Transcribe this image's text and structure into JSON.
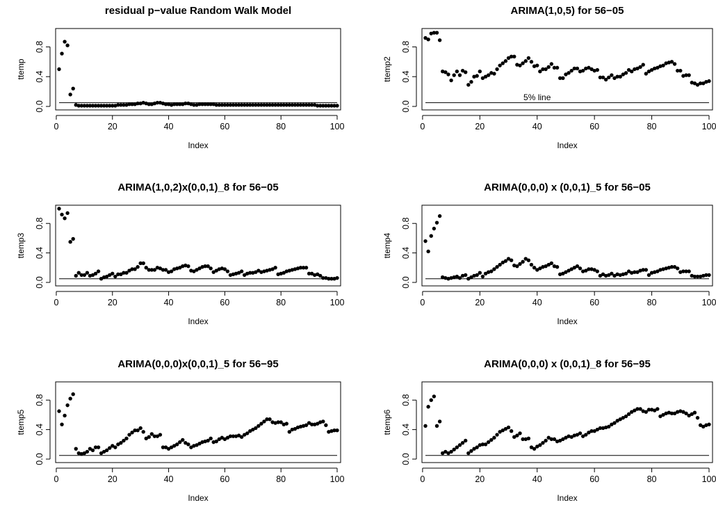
{
  "figure": {
    "title": ""
  },
  "chart_data": [
    {
      "type": "scatter",
      "title": "residual p−value Random Walk Model",
      "xlabel": "Index",
      "ylabel": "ttemp",
      "xlim": [
        1,
        100
      ],
      "ylim": [
        0,
        1
      ],
      "xticks": [
        0,
        20,
        40,
        60,
        80,
        100
      ],
      "yticks": [
        0.0,
        0.4,
        0.8
      ],
      "xtick_labels": [
        "0",
        "20",
        "40",
        "60",
        "80",
        "100"
      ],
      "ytick_labels": [
        "0.0",
        "0.4",
        "0.8"
      ],
      "hline": 0.05,
      "annotation": "",
      "y": [
        0.5,
        0.71,
        0.87,
        0.82,
        0.16,
        0.24,
        0.02,
        0.01,
        0.01,
        0.01,
        0.01,
        0.01,
        0.01,
        0.01,
        0.01,
        0.01,
        0.01,
        0.01,
        0.01,
        0.01,
        0.01,
        0.02,
        0.02,
        0.02,
        0.02,
        0.03,
        0.03,
        0.03,
        0.04,
        0.04,
        0.05,
        0.04,
        0.03,
        0.03,
        0.04,
        0.05,
        0.05,
        0.04,
        0.03,
        0.03,
        0.02,
        0.03,
        0.03,
        0.03,
        0.03,
        0.04,
        0.04,
        0.03,
        0.02,
        0.02,
        0.03,
        0.03,
        0.03,
        0.03,
        0.03,
        0.03,
        0.02,
        0.02,
        0.02,
        0.02,
        0.02,
        0.02,
        0.02,
        0.02,
        0.02,
        0.02,
        0.02,
        0.02,
        0.02,
        0.02,
        0.02,
        0.02,
        0.02,
        0.02,
        0.02,
        0.02,
        0.02,
        0.02,
        0.02,
        0.02,
        0.02,
        0.02,
        0.02,
        0.02,
        0.02,
        0.02,
        0.02,
        0.02,
        0.02,
        0.02,
        0.02,
        0.02,
        0.01,
        0.01,
        0.01,
        0.01,
        0.01,
        0.01,
        0.01,
        0.01
      ]
    },
    {
      "type": "scatter",
      "title": "ARIMA(1,0,5) for 56−05",
      "xlabel": "Index",
      "ylabel": "ttemp2",
      "xlim": [
        1,
        100
      ],
      "ylim": [
        0,
        1
      ],
      "xticks": [
        0,
        20,
        40,
        60,
        80,
        100
      ],
      "yticks": [
        0.0,
        0.4,
        0.8
      ],
      "xtick_labels": [
        "0",
        "20",
        "40",
        "60",
        "80",
        "100"
      ],
      "ytick_labels": [
        "0.0",
        "0.4",
        "0.8"
      ],
      "hline": 0.05,
      "annotation": "5% line",
      "annotation_x": 40,
      "annotation_y": 0.12,
      "y": [
        0.92,
        0.9,
        0.98,
        0.99,
        0.99,
        0.89,
        0.47,
        0.46,
        0.43,
        0.35,
        0.42,
        0.47,
        0.42,
        0.48,
        0.46,
        0.29,
        0.33,
        0.4,
        0.41,
        0.47,
        0.38,
        0.4,
        0.42,
        0.45,
        0.44,
        0.5,
        0.55,
        0.58,
        0.61,
        0.65,
        0.67,
        0.67,
        0.56,
        0.55,
        0.58,
        0.61,
        0.65,
        0.6,
        0.54,
        0.55,
        0.47,
        0.5,
        0.5,
        0.53,
        0.57,
        0.52,
        0.52,
        0.38,
        0.38,
        0.43,
        0.45,
        0.48,
        0.51,
        0.51,
        0.47,
        0.48,
        0.51,
        0.52,
        0.5,
        0.48,
        0.49,
        0.39,
        0.39,
        0.36,
        0.39,
        0.42,
        0.38,
        0.4,
        0.4,
        0.43,
        0.45,
        0.49,
        0.47,
        0.5,
        0.51,
        0.53,
        0.56,
        0.44,
        0.47,
        0.49,
        0.51,
        0.52,
        0.54,
        0.55,
        0.58,
        0.59,
        0.6,
        0.57,
        0.48,
        0.48,
        0.41,
        0.42,
        0.42,
        0.32,
        0.31,
        0.29,
        0.31,
        0.31,
        0.33,
        0.34
      ]
    },
    {
      "type": "scatter",
      "title": "ARIMA(1,0,2)x(0,0,1)_8 for 56−05",
      "xlabel": "Index",
      "ylabel": "ttemp3",
      "xlim": [
        1,
        100
      ],
      "ylim": [
        0,
        1
      ],
      "xticks": [
        0,
        20,
        40,
        60,
        80,
        100
      ],
      "yticks": [
        0.0,
        0.4,
        0.8
      ],
      "xtick_labels": [
        "0",
        "20",
        "40",
        "60",
        "80",
        "100"
      ],
      "ytick_labels": [
        "0.0",
        "0.4",
        "0.8"
      ],
      "hline": 0.05,
      "annotation": "",
      "y": [
        1.0,
        0.92,
        0.87,
        0.94,
        0.55,
        0.59,
        0.09,
        0.13,
        0.1,
        0.1,
        0.13,
        0.09,
        0.1,
        0.12,
        0.15,
        0.05,
        0.07,
        0.08,
        0.1,
        0.12,
        0.08,
        0.11,
        0.11,
        0.13,
        0.13,
        0.16,
        0.18,
        0.18,
        0.21,
        0.26,
        0.26,
        0.2,
        0.17,
        0.17,
        0.17,
        0.2,
        0.19,
        0.17,
        0.17,
        0.14,
        0.15,
        0.18,
        0.19,
        0.2,
        0.22,
        0.23,
        0.22,
        0.16,
        0.15,
        0.17,
        0.19,
        0.21,
        0.22,
        0.22,
        0.19,
        0.14,
        0.16,
        0.18,
        0.19,
        0.18,
        0.15,
        0.1,
        0.11,
        0.12,
        0.13,
        0.15,
        0.1,
        0.12,
        0.13,
        0.13,
        0.14,
        0.16,
        0.14,
        0.15,
        0.16,
        0.17,
        0.18,
        0.2,
        0.11,
        0.12,
        0.13,
        0.15,
        0.16,
        0.17,
        0.18,
        0.19,
        0.2,
        0.2,
        0.2,
        0.12,
        0.12,
        0.1,
        0.11,
        0.09,
        0.06,
        0.06,
        0.05,
        0.05,
        0.05,
        0.06
      ]
    },
    {
      "type": "scatter",
      "title": "ARIMA(0,0,0) x (0,0,1)_5 for 56−05",
      "xlabel": "Index",
      "ylabel": "ttemp4",
      "xlim": [
        1,
        100
      ],
      "ylim": [
        0,
        1
      ],
      "xticks": [
        0,
        20,
        40,
        60,
        80,
        100
      ],
      "yticks": [
        0.0,
        0.4,
        0.8
      ],
      "xtick_labels": [
        "0",
        "20",
        "40",
        "60",
        "80",
        "100"
      ],
      "ytick_labels": [
        "0.0",
        "0.4",
        "0.8"
      ],
      "hline": 0.05,
      "annotation": "",
      "y": [
        0.56,
        0.42,
        0.63,
        0.73,
        0.81,
        0.9,
        0.07,
        0.06,
        0.05,
        0.06,
        0.07,
        0.08,
        0.06,
        0.09,
        0.1,
        0.05,
        0.07,
        0.09,
        0.1,
        0.13,
        0.08,
        0.12,
        0.14,
        0.15,
        0.18,
        0.21,
        0.24,
        0.27,
        0.29,
        0.32,
        0.3,
        0.23,
        0.22,
        0.25,
        0.28,
        0.32,
        0.3,
        0.24,
        0.2,
        0.17,
        0.19,
        0.21,
        0.22,
        0.24,
        0.26,
        0.22,
        0.21,
        0.11,
        0.12,
        0.14,
        0.16,
        0.18,
        0.2,
        0.22,
        0.19,
        0.15,
        0.16,
        0.18,
        0.18,
        0.17,
        0.15,
        0.09,
        0.11,
        0.09,
        0.1,
        0.12,
        0.09,
        0.11,
        0.1,
        0.11,
        0.12,
        0.15,
        0.13,
        0.14,
        0.14,
        0.16,
        0.17,
        0.17,
        0.1,
        0.13,
        0.14,
        0.15,
        0.17,
        0.18,
        0.19,
        0.2,
        0.21,
        0.21,
        0.19,
        0.14,
        0.15,
        0.15,
        0.15,
        0.09,
        0.08,
        0.08,
        0.08,
        0.09,
        0.1,
        0.1
      ]
    },
    {
      "type": "scatter",
      "title": "ARIMA(0,0,0)x(0,0,1)_5 for 56−95",
      "xlabel": "Index",
      "ylabel": "ttemp5",
      "xlim": [
        1,
        100
      ],
      "ylim": [
        0,
        1
      ],
      "xticks": [
        0,
        20,
        40,
        60,
        80,
        100
      ],
      "yticks": [
        0.0,
        0.4,
        0.8
      ],
      "xtick_labels": [
        "0",
        "20",
        "40",
        "60",
        "80",
        "100"
      ],
      "ytick_labels": [
        "0.0",
        "0.4",
        "0.8"
      ],
      "hline": 0.05,
      "annotation": "",
      "y": [
        0.65,
        0.47,
        0.59,
        0.73,
        0.82,
        0.88,
        0.14,
        0.08,
        0.07,
        0.08,
        0.1,
        0.14,
        0.12,
        0.16,
        0.16,
        0.08,
        0.1,
        0.12,
        0.15,
        0.18,
        0.16,
        0.2,
        0.22,
        0.25,
        0.28,
        0.33,
        0.36,
        0.39,
        0.39,
        0.42,
        0.37,
        0.28,
        0.3,
        0.34,
        0.31,
        0.31,
        0.33,
        0.16,
        0.16,
        0.14,
        0.16,
        0.18,
        0.2,
        0.23,
        0.26,
        0.22,
        0.2,
        0.16,
        0.18,
        0.19,
        0.21,
        0.23,
        0.24,
        0.25,
        0.28,
        0.23,
        0.24,
        0.27,
        0.29,
        0.27,
        0.29,
        0.31,
        0.31,
        0.31,
        0.32,
        0.3,
        0.33,
        0.35,
        0.38,
        0.4,
        0.42,
        0.45,
        0.48,
        0.51,
        0.54,
        0.54,
        0.5,
        0.49,
        0.5,
        0.5,
        0.47,
        0.48,
        0.37,
        0.4,
        0.41,
        0.43,
        0.44,
        0.45,
        0.46,
        0.49,
        0.47,
        0.47,
        0.48,
        0.5,
        0.51,
        0.46,
        0.37,
        0.38,
        0.39,
        0.39
      ]
    },
    {
      "type": "scatter",
      "title": "ARIMA(0,0,0) x (0,0,1)_8 for 56−95",
      "xlabel": "Index",
      "ylabel": "ttemp6",
      "xlim": [
        1,
        100
      ],
      "ylim": [
        0,
        1
      ],
      "xticks": [
        0,
        20,
        40,
        60,
        80,
        100
      ],
      "yticks": [
        0.0,
        0.4,
        0.8
      ],
      "xtick_labels": [
        "0",
        "20",
        "40",
        "60",
        "80",
        "100"
      ],
      "ytick_labels": [
        "0.0",
        "0.4",
        "0.8"
      ],
      "hline": 0.05,
      "annotation": "",
      "y": [
        0.45,
        0.71,
        0.8,
        0.85,
        0.45,
        0.51,
        0.08,
        0.1,
        0.08,
        0.1,
        0.13,
        0.16,
        0.19,
        0.22,
        0.25,
        0.08,
        0.11,
        0.14,
        0.16,
        0.19,
        0.2,
        0.2,
        0.23,
        0.26,
        0.29,
        0.33,
        0.37,
        0.39,
        0.41,
        0.43,
        0.38,
        0.3,
        0.32,
        0.35,
        0.27,
        0.27,
        0.28,
        0.16,
        0.14,
        0.17,
        0.19,
        0.22,
        0.25,
        0.29,
        0.27,
        0.27,
        0.24,
        0.25,
        0.27,
        0.29,
        0.31,
        0.3,
        0.32,
        0.33,
        0.35,
        0.31,
        0.33,
        0.36,
        0.38,
        0.38,
        0.4,
        0.42,
        0.42,
        0.43,
        0.44,
        0.47,
        0.49,
        0.52,
        0.54,
        0.56,
        0.58,
        0.61,
        0.64,
        0.66,
        0.68,
        0.68,
        0.65,
        0.64,
        0.67,
        0.67,
        0.66,
        0.68,
        0.58,
        0.6,
        0.62,
        0.63,
        0.62,
        0.62,
        0.64,
        0.65,
        0.64,
        0.62,
        0.59,
        0.61,
        0.63,
        0.56,
        0.46,
        0.44,
        0.46,
        0.47
      ]
    }
  ]
}
